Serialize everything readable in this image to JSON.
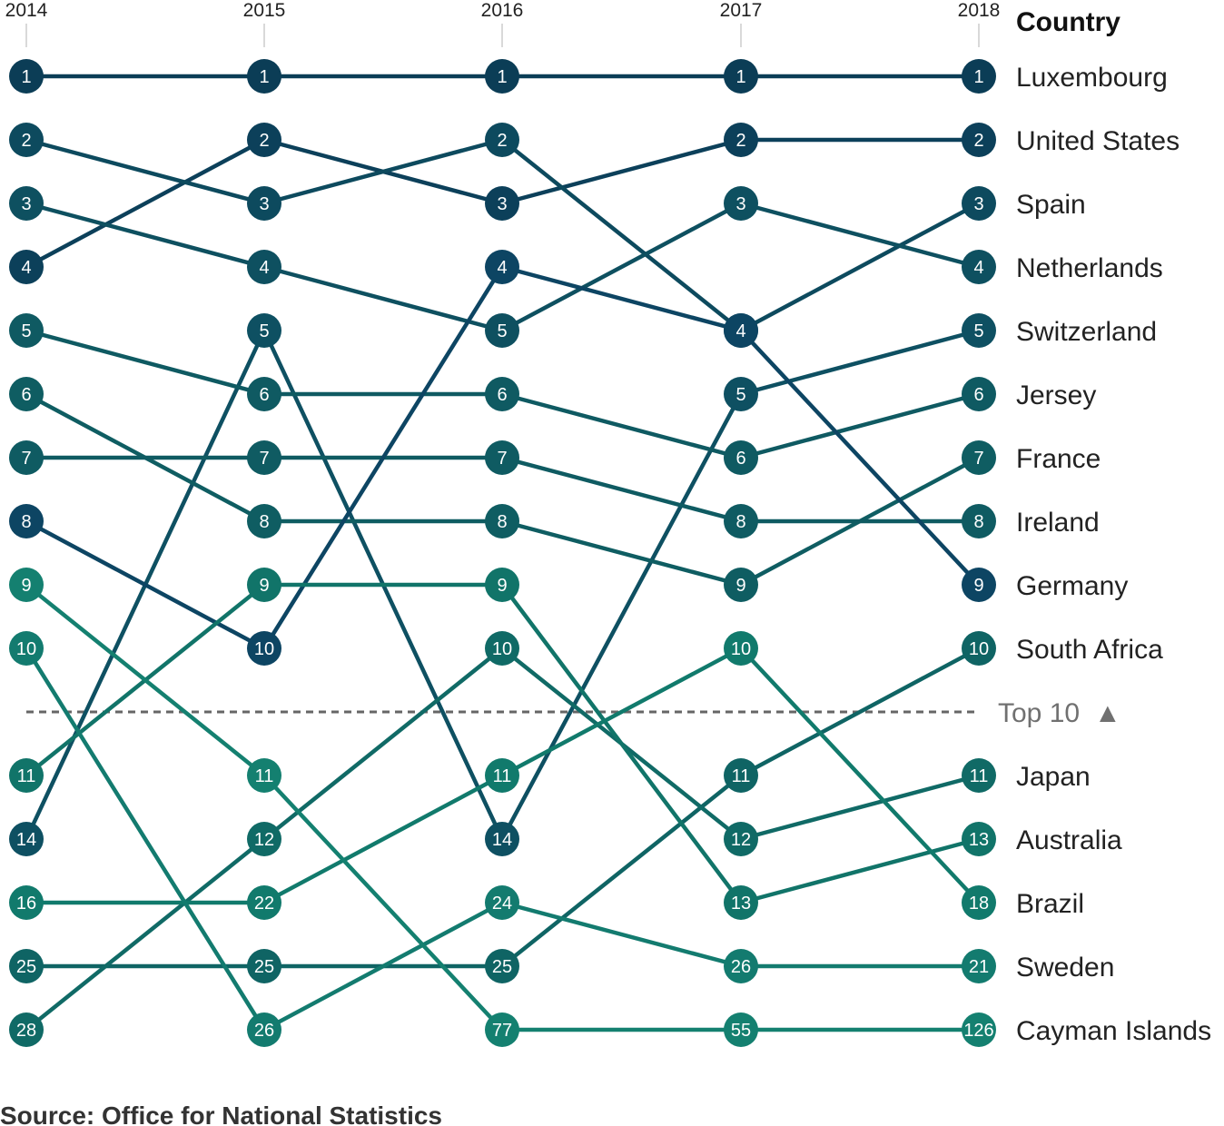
{
  "chart_data": {
    "type": "bump",
    "x": [
      "2014",
      "2015",
      "2016",
      "2017",
      "2018"
    ],
    "header": "Country",
    "threshold_label": "Top 10",
    "threshold_glyph": "▲",
    "source": "Source: Office for National Statistics",
    "line_style": "threshold dashed grey",
    "series": [
      {
        "name": "Luxembourg",
        "values": [
          1,
          1,
          1,
          1,
          1
        ],
        "color": "#0b3d56"
      },
      {
        "name": "United States",
        "values": [
          4,
          2,
          3,
          2,
          2
        ],
        "color": "#0c405a"
      },
      {
        "name": "Spain",
        "values": [
          2,
          3,
          2,
          4,
          3
        ],
        "color": "#0d4a5e"
      },
      {
        "name": "Netherlands",
        "values": [
          3,
          4,
          5,
          3,
          4
        ],
        "color": "#0e5060"
      },
      {
        "name": "Switzerland",
        "values": [
          14,
          5,
          14,
          5,
          5
        ],
        "color": "#0e5062"
      },
      {
        "name": "Jersey",
        "values": [
          5,
          6,
          6,
          6,
          6
        ],
        "color": "#0f5a62"
      },
      {
        "name": "France",
        "values": [
          6,
          8,
          8,
          9,
          7
        ],
        "color": "#0f5d62"
      },
      {
        "name": "Ireland",
        "values": [
          7,
          7,
          7,
          8,
          8
        ],
        "color": "#0f5b62"
      },
      {
        "name": "Germany",
        "values": [
          8,
          10,
          4,
          4,
          9
        ],
        "color": "#0d4563"
      },
      {
        "name": "South Africa",
        "values": [
          25,
          25,
          25,
          11,
          10
        ],
        "color": "#0f6464"
      },
      {
        "name": "Japan",
        "values": [
          28,
          12,
          10,
          12,
          11
        ],
        "color": "#106a66"
      },
      {
        "name": "Australia",
        "values": [
          11,
          9,
          9,
          13,
          13
        ],
        "color": "#117469"
      },
      {
        "name": "Brazil",
        "values": [
          16,
          22,
          11,
          10,
          18
        ],
        "color": "#117a6c"
      },
      {
        "name": "Sweden",
        "values": [
          10,
          26,
          24,
          26,
          21
        ],
        "color": "#137b6f"
      },
      {
        "name": "Cayman Islands",
        "values": [
          9,
          11,
          77,
          55,
          126
        ],
        "color": "#148070"
      }
    ]
  }
}
